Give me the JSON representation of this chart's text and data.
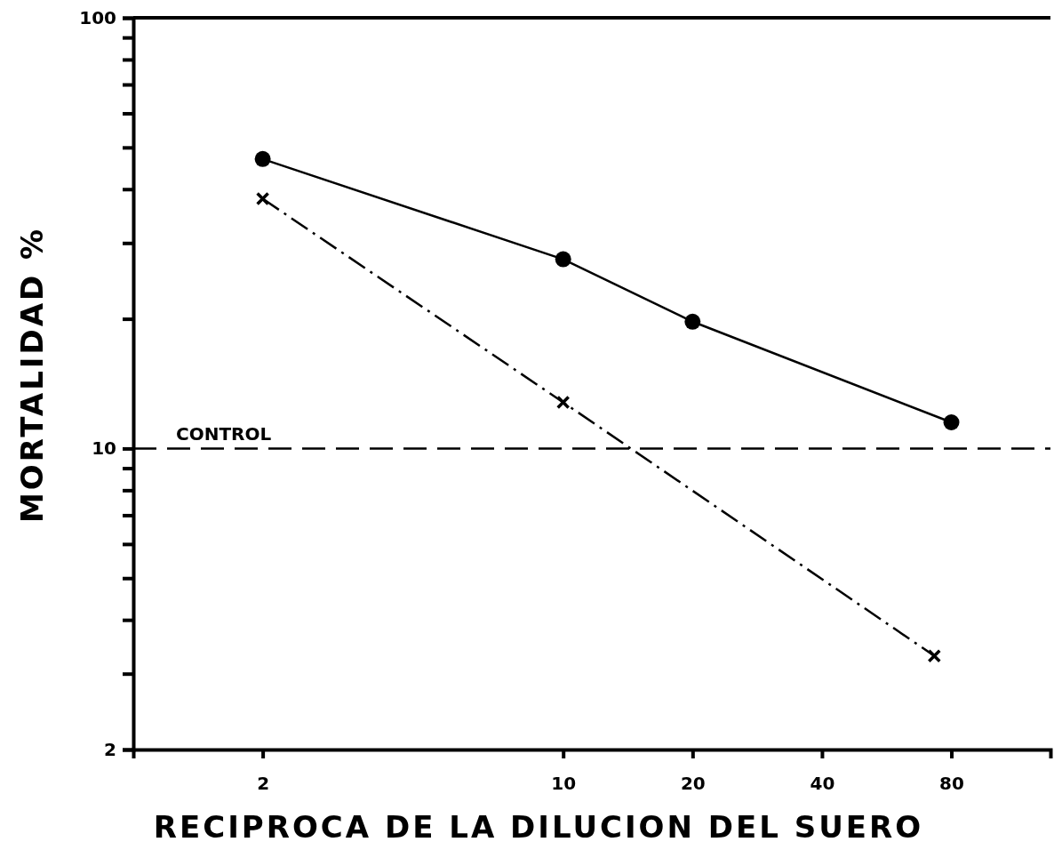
{
  "chart_data": {
    "type": "line",
    "xlabel": "RECIPROCA DE LA DILUCION DEL SUERO",
    "ylabel": "MORTALIDAD %",
    "log": "xy",
    "xlim": [
      1,
      136
    ],
    "xticks": [
      2,
      10,
      20,
      40,
      80
    ],
    "ylim": [
      2,
      100
    ],
    "yticks": [
      2,
      {
        "value": 3,
        "label": null
      },
      {
        "value": 4,
        "label": null
      },
      {
        "value": 5,
        "label": null
      },
      {
        "value": 6,
        "label": null
      },
      {
        "value": 7,
        "label": null
      },
      {
        "value": 8,
        "label": null
      },
      {
        "value": 9,
        "label": null
      },
      10,
      {
        "value": 20,
        "label": null
      },
      {
        "value": 30,
        "label": null
      },
      {
        "value": 40,
        "label": null
      },
      {
        "value": 50,
        "label": null
      },
      {
        "value": 60,
        "label": null
      },
      {
        "value": 70,
        "label": null
      },
      {
        "value": 80,
        "label": null
      },
      {
        "value": 90,
        "label": null
      },
      100
    ],
    "grid": false,
    "series": [
      {
        "color": "#000000",
        "x": [
          2,
          10,
          20,
          80
        ],
        "values": [
          47,
          27.5,
          19.7,
          11.5
        ],
        "marker": "circle",
        "line_style": "solid"
      },
      {
        "color": "#000000",
        "x": [
          2,
          10,
          73
        ],
        "values": [
          38,
          12.8,
          3.3
        ],
        "marker": "cross",
        "line_style": "dashed"
      }
    ],
    "ref_lines": [
      {
        "axis": "y",
        "value": 10,
        "label": "CONTROL",
        "color": "#000000",
        "line_style": "dashed"
      }
    ]
  }
}
